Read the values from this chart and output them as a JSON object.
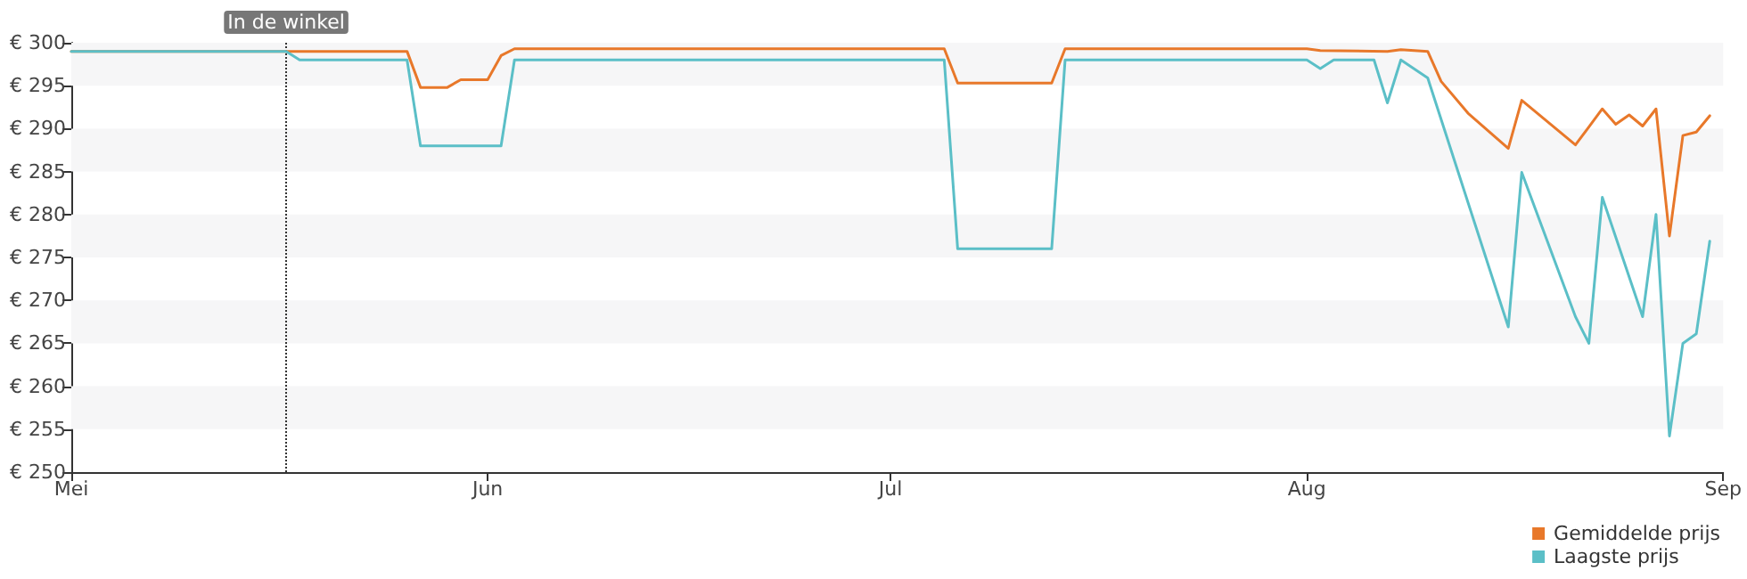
{
  "chart_data": {
    "type": "line",
    "legend": "bottom right",
    "marker": "none",
    "line_style": "solid",
    "bands": [
      {
        "axis": "y",
        "from": 255,
        "to": 260,
        "color": "#f6f6f7"
      },
      {
        "axis": "y",
        "from": 265,
        "to": 270,
        "color": "#f6f6f7"
      },
      {
        "axis": "y",
        "from": 275,
        "to": 280,
        "color": "#f6f6f7"
      },
      {
        "axis": "y",
        "from": 285,
        "to": 290,
        "color": "#f6f6f7"
      },
      {
        "axis": "y",
        "from": 295,
        "to": 300,
        "color": "#f6f6f7"
      }
    ],
    "xlim": [
      "--05-01",
      "--09-01"
    ],
    "xticks": [
      {
        "value": "--05-01",
        "label": "Mei"
      },
      {
        "value": "--06-01",
        "label": "Jun"
      },
      {
        "value": "--07-01",
        "label": "Jul"
      },
      {
        "value": "--08-01",
        "label": "Aug"
      },
      {
        "value": "--09-01",
        "label": "Sep"
      }
    ],
    "ylim": [
      250,
      300
    ],
    "yticks": [
      {
        "value": 250,
        "label": "€ 250"
      },
      {
        "value": 255,
        "label": "€ 255"
      },
      {
        "value": 260,
        "label": "€ 260"
      },
      {
        "value": 265,
        "label": "€ 265"
      },
      {
        "value": 270,
        "label": "€ 270"
      },
      {
        "value": 275,
        "label": "€ 275"
      },
      {
        "value": 280,
        "label": "€ 280"
      },
      {
        "value": 285,
        "label": "€ 285"
      },
      {
        "value": 290,
        "label": "€ 290"
      },
      {
        "value": 295,
        "label": "€ 295"
      },
      {
        "value": 300,
        "label": "€ 300"
      }
    ],
    "ref_lines": [
      {
        "axis": "x",
        "value": "--05-17",
        "label": "In de winkel",
        "line_style": "dotted",
        "color": "#333333"
      }
    ],
    "series": [
      {
        "name": "Gemiddelde prijs",
        "color": "#e8782a",
        "x": [
          "--05-01",
          "--05-26",
          "--05-27",
          "--05-29",
          "--05-30",
          "--06-01",
          "--06-02",
          "--06-03",
          "--07-05",
          "--07-06",
          "--07-13",
          "--07-14",
          "--08-01",
          "--08-02",
          "--08-07",
          "--08-08",
          "--08-10",
          "--08-11",
          "--08-13",
          "--08-16",
          "--08-17",
          "--08-21",
          "--08-23",
          "--08-24",
          "--08-25",
          "--08-26",
          "--08-27",
          "--08-28",
          "--08-29",
          "--08-30",
          "--08-31"
        ],
        "values": [
          299,
          299,
          294.8,
          294.8,
          295.7,
          295.7,
          298.5,
          299.3,
          299.3,
          295.3,
          295.3,
          299.3,
          299.3,
          299.1,
          299,
          299.2,
          299,
          295.5,
          291.8,
          287.7,
          293.3,
          288.1,
          292.3,
          290.5,
          291.6,
          290.3,
          292.3,
          277.5,
          289.2,
          289.6,
          291.5
        ]
      },
      {
        "name": "Laagste prijs",
        "color": "#5bbfc7",
        "x": [
          "--05-01",
          "--05-17",
          "--05-18",
          "--05-26",
          "--05-27",
          "--06-02",
          "--06-03",
          "--07-05",
          "--07-06",
          "--07-13",
          "--07-14",
          "--08-01",
          "--08-02",
          "--08-03",
          "--08-06",
          "--08-07",
          "--08-08",
          "--08-10",
          "--08-16",
          "--08-17",
          "--08-21",
          "--08-22",
          "--08-23",
          "--08-26",
          "--08-27",
          "--08-28",
          "--08-29",
          "--08-30",
          "--08-31"
        ],
        "values": [
          299,
          299,
          298,
          298,
          288,
          288,
          298,
          298,
          276,
          276,
          298,
          298,
          297,
          298,
          298,
          293,
          298,
          295.9,
          266.9,
          284.9,
          268.1,
          265,
          282,
          268.1,
          280,
          254.2,
          265,
          266.1,
          276.9
        ]
      }
    ]
  }
}
